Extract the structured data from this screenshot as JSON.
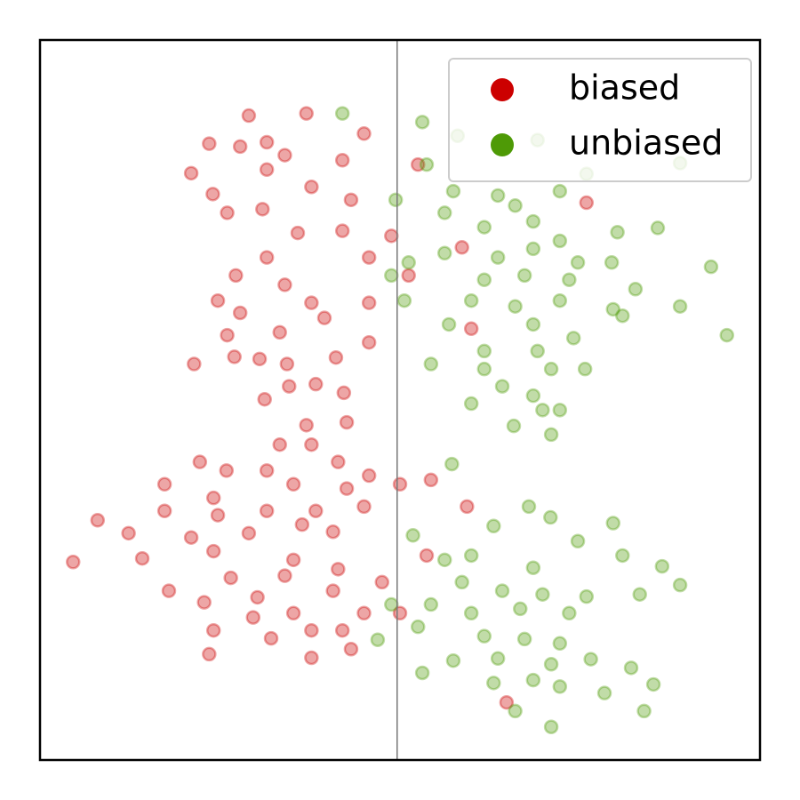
{
  "chart_data": {
    "type": "scatter",
    "xlim": [
      0,
      100
    ],
    "ylim": [
      0,
      100
    ],
    "vline": 49.6,
    "legend": "upper right",
    "series": [
      {
        "name": "biased",
        "color": "#cc0000",
        "x": [
          29,
          37,
          31.5,
          23.5,
          27.8,
          34,
          42,
          45,
          21,
          24,
          31.5,
          37.7,
          43.2,
          30.9,
          26,
          35.8,
          42,
          48.8,
          45.7,
          31.5,
          27.2,
          34,
          24.7,
          37.7,
          45.7,
          27.8,
          39.5,
          26,
          33.3,
          21.4,
          27,
          30.5,
          34.3,
          41.1,
          45.7,
          34.6,
          38.3,
          42.2,
          31.2,
          51.2,
          58.6,
          59.9,
          52.5,
          75.9,
          37,
          42.6,
          33.3,
          37.7,
          22.2,
          25.9,
          31.5,
          41.4,
          45.7,
          17.3,
          24.1,
          35.2,
          42.6,
          50,
          54.3,
          17.3,
          24.7,
          31.5,
          38.3,
          45,
          8,
          12.3,
          21,
          29,
          36.4,
          40.7,
          4.6,
          14.2,
          24.1,
          35.2,
          41.4,
          53.7,
          26.5,
          34,
          47.5,
          17.9,
          22.8,
          30.2,
          40.7,
          29.6,
          35.2,
          45,
          50,
          24.1,
          32.1,
          37.7,
          42,
          23.5,
          37.7,
          43.2,
          64.8,
          59.3
        ],
        "values": [
          89.5,
          89.8,
          85.8,
          85.6,
          85.2,
          84,
          83.3,
          87,
          81.5,
          78.6,
          82,
          79.6,
          77.8,
          76.5,
          76,
          73.2,
          73.5,
          72.8,
          69.8,
          69.8,
          67.3,
          66,
          63.8,
          63.5,
          63.5,
          62.1,
          61.4,
          59,
          59.4,
          55,
          56,
          55.7,
          55,
          55.9,
          58,
          51.9,
          52.2,
          51,
          50.1,
          67.3,
          71.2,
          59.9,
          82.7,
          77.4,
          46.5,
          46.9,
          43.8,
          43.8,
          41.4,
          40.2,
          40.2,
          41.4,
          39.5,
          38.3,
          36.4,
          38.3,
          37.7,
          38.3,
          38.9,
          34.6,
          34,
          34.6,
          34.6,
          35.2,
          33.3,
          31.5,
          30.9,
          31.5,
          32.7,
          31.7,
          27.5,
          28,
          29,
          27.8,
          26.5,
          28.4,
          25.3,
          25.6,
          24.7,
          23.5,
          21.9,
          22.6,
          23.5,
          19.8,
          20.4,
          20.4,
          20.4,
          18,
          16.9,
          18,
          18,
          14.7,
          14.2,
          15.4,
          8,
          35.2
        ]
      },
      {
        "name": "unbiased",
        "color": "#4e9a06",
        "x": [
          42,
          53.1,
          58,
          69.1,
          53.7,
          57.4,
          63.6,
          66,
          72.2,
          49.4,
          56.2,
          68.5,
          61.7,
          72.2,
          80.2,
          85.8,
          51.2,
          56.2,
          63.6,
          68.5,
          74.7,
          79.4,
          93.2,
          48.8,
          61.7,
          67.3,
          73.5,
          82.7,
          50.6,
          59.9,
          66,
          72.2,
          79.6,
          88.9,
          56.8,
          68.5,
          80.9,
          95.4,
          54.3,
          61.7,
          69.1,
          74.1,
          61.7,
          71,
          75.7,
          64.2,
          68.5,
          59.9,
          69.8,
          72.2,
          65.8,
          71,
          88.9,
          75.9,
          57.2,
          51.8,
          63,
          67.9,
          70.9,
          79.6,
          56.2,
          59.9,
          68.5,
          74.7,
          80.9,
          86.4,
          88.9,
          58.6,
          64.2,
          69.8,
          75.9,
          83.3,
          48.8,
          54.3,
          59.9,
          66.7,
          73.5,
          46.9,
          52.5,
          61.7,
          67.3,
          72.2,
          57.4,
          63.6,
          71,
          76.5,
          82.1,
          53.1,
          63,
          68.5,
          72.2,
          78.4,
          85.2,
          66,
          71,
          83.9
        ],
        "values": [
          89.8,
          88.6,
          86.7,
          86.1,
          82.7,
          79,
          78.4,
          77,
          79,
          77.8,
          76,
          74.8,
          74,
          72.1,
          73.3,
          73.9,
          69.1,
          70.4,
          69.8,
          71,
          69.1,
          69.1,
          68.5,
          67.3,
          66.7,
          67.3,
          66.7,
          65.4,
          63.8,
          63.8,
          63,
          63.8,
          62.6,
          63,
          60.5,
          60.5,
          61.7,
          59,
          55,
          56.8,
          56.8,
          58.6,
          54.3,
          54.3,
          54.3,
          51.9,
          50.6,
          49.5,
          48.6,
          48.6,
          46.4,
          45.2,
          82.9,
          81.4,
          41.1,
          31.2,
          32.5,
          35.2,
          33.7,
          32.9,
          27.8,
          28.4,
          26.7,
          30.4,
          28.4,
          26.9,
          24.3,
          24.7,
          23.5,
          23,
          22.7,
          23,
          21.6,
          21.6,
          20.4,
          21,
          20.4,
          16.7,
          18.5,
          17.2,
          16.8,
          16.2,
          13.8,
          14.1,
          13.3,
          14,
          12.8,
          12.1,
          10.7,
          11.1,
          10.2,
          9.3,
          10.5,
          6.8,
          4.6,
          6.8
        ]
      }
    ]
  }
}
